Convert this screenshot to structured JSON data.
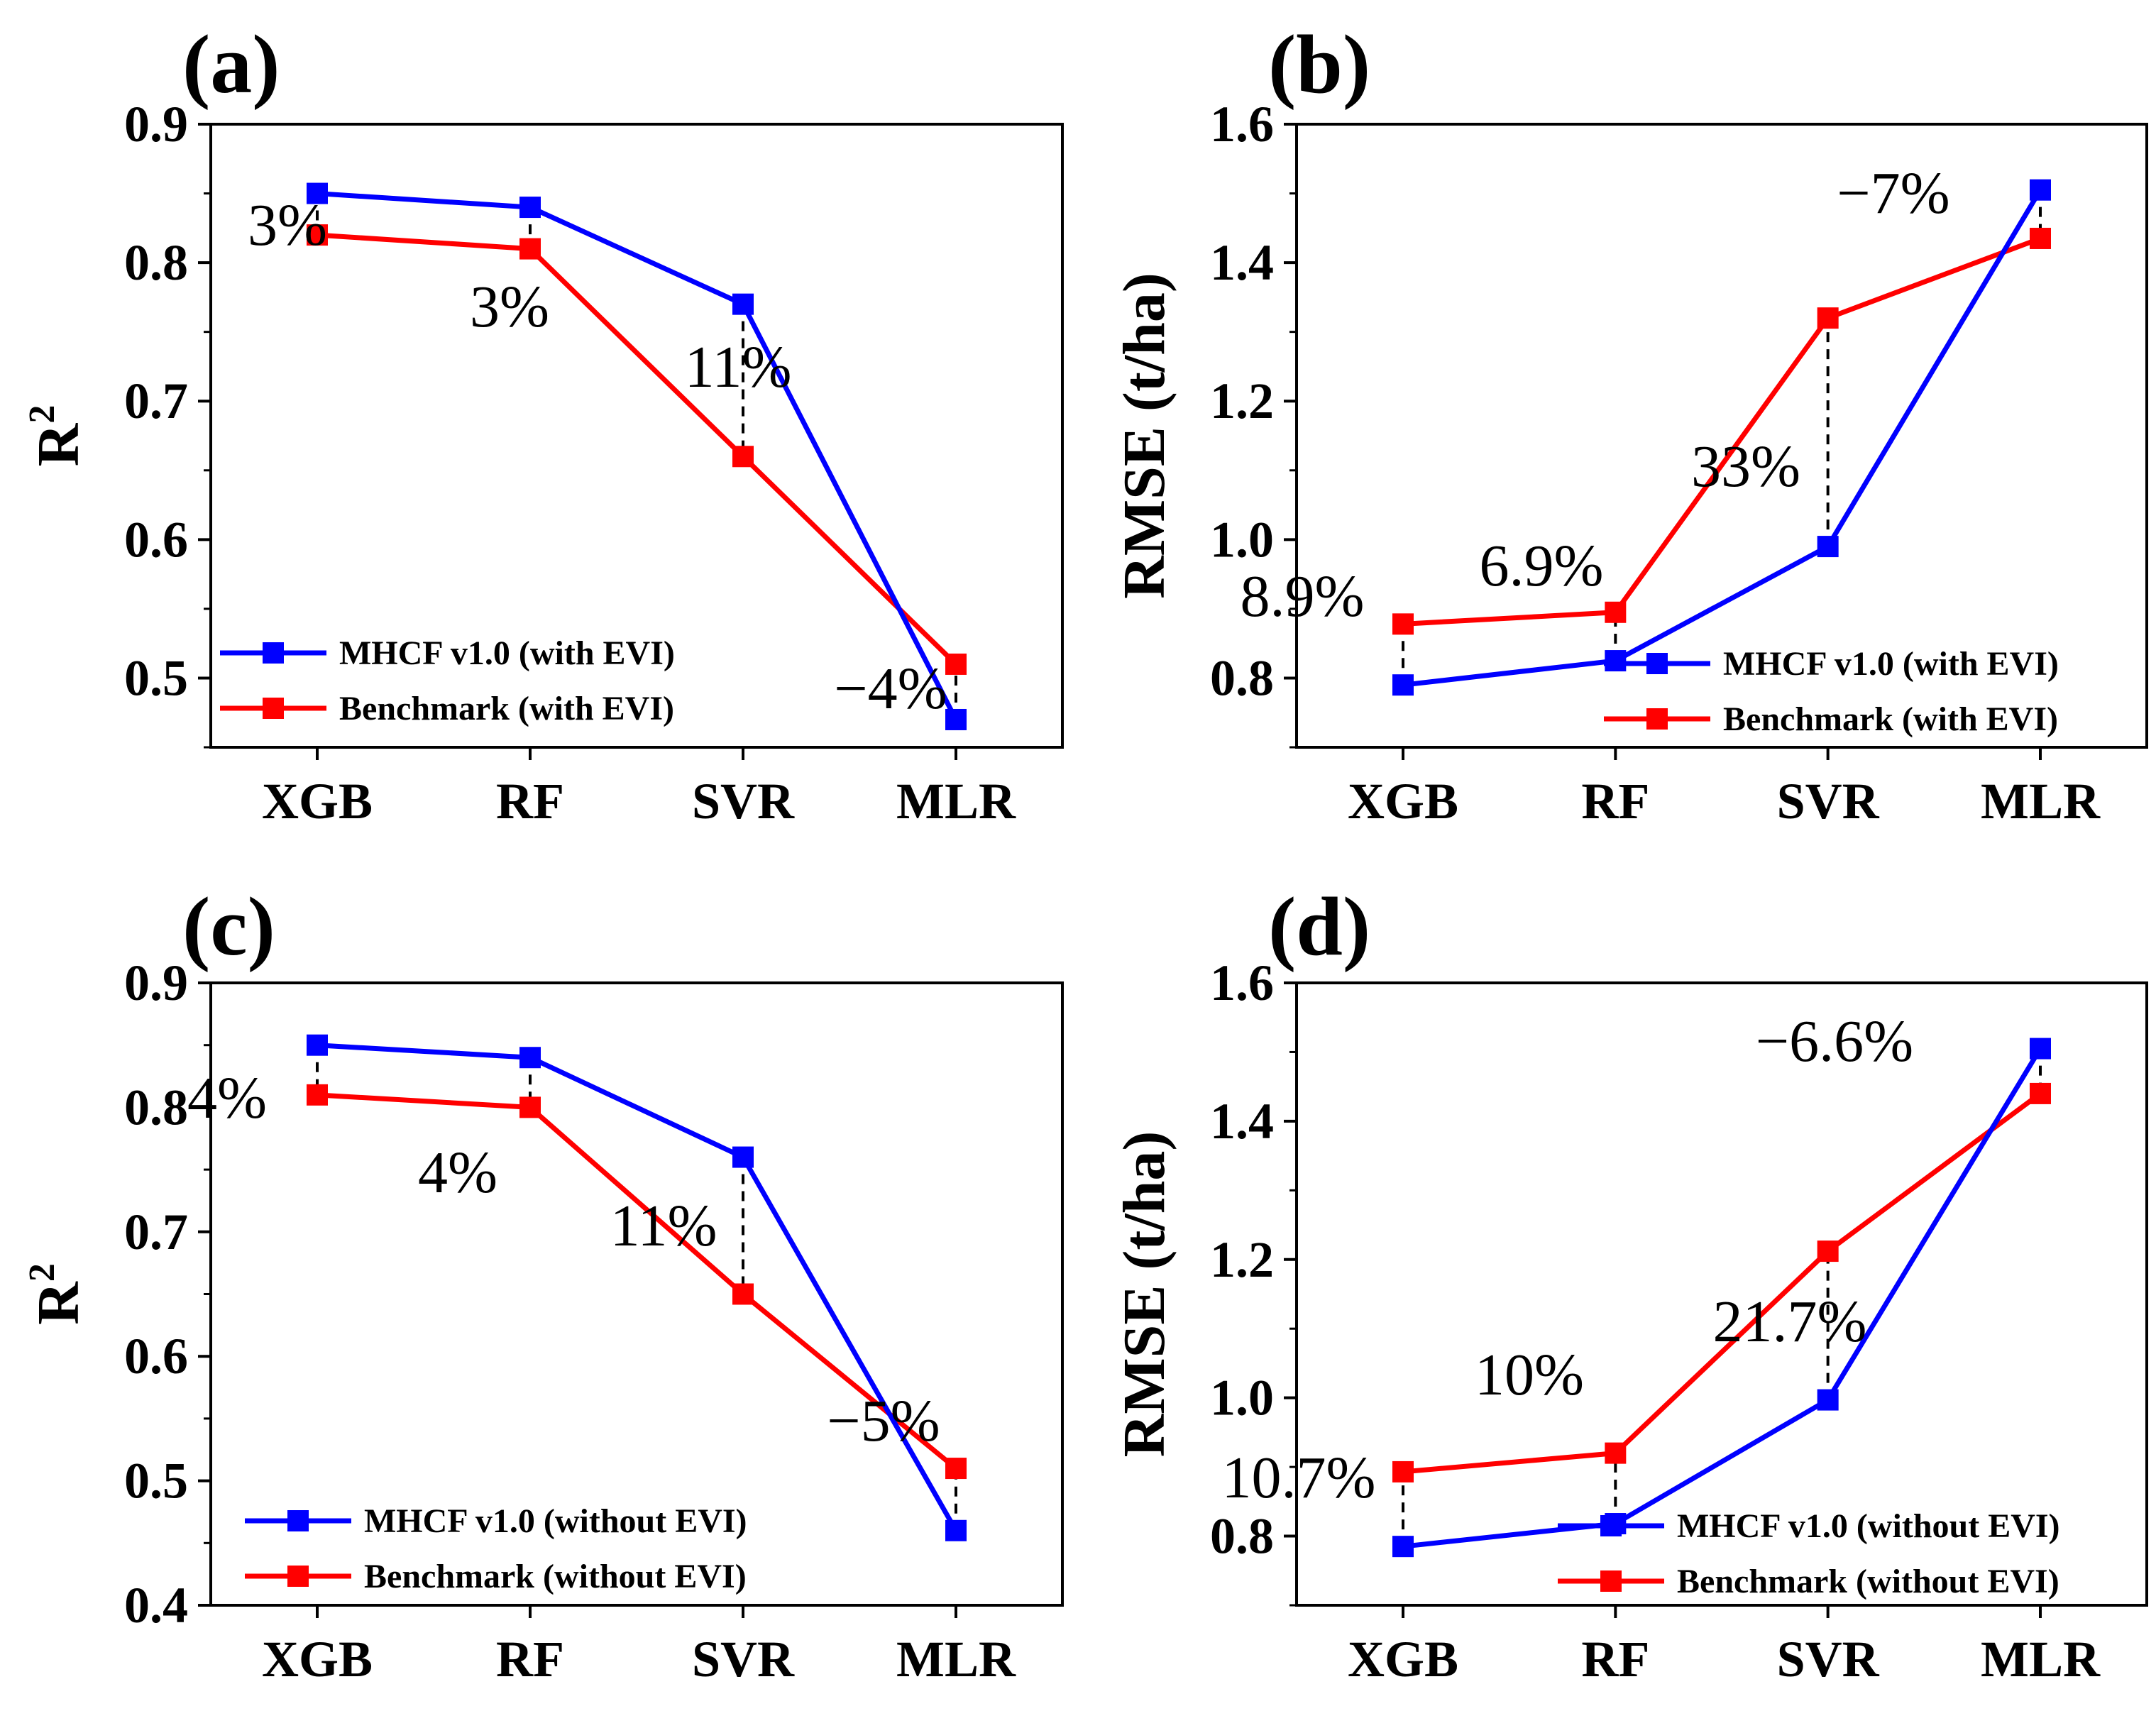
{
  "chart_data": [
    {
      "type": "line",
      "panel_label": "(a)",
      "categories": [
        "XGB",
        "RF",
        "SVR",
        "MLR"
      ],
      "ylabel": "R",
      "ylabel_sup": "2",
      "ylim": [
        0.45,
        0.9
      ],
      "yticks": [
        0.5,
        0.6,
        0.7,
        0.8,
        0.9
      ],
      "ytick_labels": [
        "0.5",
        "0.6",
        "0.7",
        "0.8",
        "0.9"
      ],
      "legend_position": "bottom-left",
      "series": [
        {
          "name": "MHCF v1.0 (with EVI)",
          "color": "#0000ff",
          "values": [
            0.85,
            0.84,
            0.77,
            0.47
          ]
        },
        {
          "name": "Benchmark (with EVI)",
          "color": "#ff0000",
          "values": [
            0.82,
            0.81,
            0.66,
            0.51
          ]
        }
      ],
      "annotations": [
        "3%",
        "3%",
        "11%",
        "−4%"
      ]
    },
    {
      "type": "line",
      "panel_label": "(b)",
      "categories": [
        "XGB",
        "RF",
        "SVR",
        "MLR"
      ],
      "ylabel": "RMSE (t/ha)",
      "ylabel_sup": "",
      "ylim": [
        0.7,
        1.6
      ],
      "yticks": [
        0.8,
        1.0,
        1.2,
        1.4,
        1.6
      ],
      "ytick_labels": [
        "0.8",
        "1.0",
        "1.2",
        "1.4",
        "1.6"
      ],
      "legend_position": "bottom-right",
      "series": [
        {
          "name": "MHCF v1.0 (with EVI)",
          "color": "#0000ff",
          "values": [
            0.79,
            0.825,
            0.99,
            1.505
          ]
        },
        {
          "name": "Benchmark (with EVI)",
          "color": "#ff0000",
          "values": [
            0.878,
            0.895,
            1.32,
            1.435
          ]
        }
      ],
      "annotations": [
        "8.9%",
        "6.9%",
        "33%",
        "−7%"
      ]
    },
    {
      "type": "line",
      "panel_label": "(c)",
      "categories": [
        "XGB",
        "RF",
        "SVR",
        "MLR"
      ],
      "ylabel": "R",
      "ylabel_sup": "2",
      "ylim": [
        0.4,
        0.9
      ],
      "yticks": [
        0.4,
        0.5,
        0.6,
        0.7,
        0.8,
        0.9
      ],
      "ytick_labels": [
        "0.4",
        "0.5",
        "0.6",
        "0.7",
        "0.8",
        "0.9"
      ],
      "legend_position": "bottom-left",
      "series": [
        {
          "name": "MHCF v1.0 (without EVI)",
          "color": "#0000ff",
          "values": [
            0.85,
            0.84,
            0.76,
            0.46
          ]
        },
        {
          "name": "Benchmark (without EVI)",
          "color": "#ff0000",
          "values": [
            0.81,
            0.8,
            0.65,
            0.51
          ]
        }
      ],
      "annotations": [
        "4%",
        "4%",
        "11%",
        "−5%"
      ]
    },
    {
      "type": "line",
      "panel_label": "(d)",
      "categories": [
        "XGB",
        "RF",
        "SVR",
        "MLR"
      ],
      "ylabel": "RMSE (t/ha)",
      "ylabel_sup": "",
      "ylim": [
        0.7,
        1.6
      ],
      "yticks": [
        0.8,
        1.0,
        1.2,
        1.4,
        1.6
      ],
      "ytick_labels": [
        "0.8",
        "1.0",
        "1.2",
        "1.4",
        "1.6"
      ],
      "legend_position": "bottom-right",
      "series": [
        {
          "name": "MHCF v1.0 (without EVI)",
          "color": "#0000ff",
          "values": [
            0.785,
            0.818,
            0.997,
            1.505
          ]
        },
        {
          "name": "Benchmark (without EVI)",
          "color": "#ff0000",
          "values": [
            0.893,
            0.92,
            1.212,
            1.44
          ]
        }
      ],
      "annotations": [
        "10.7%",
        "10%",
        "21.7%",
        "−6.6%"
      ]
    }
  ]
}
